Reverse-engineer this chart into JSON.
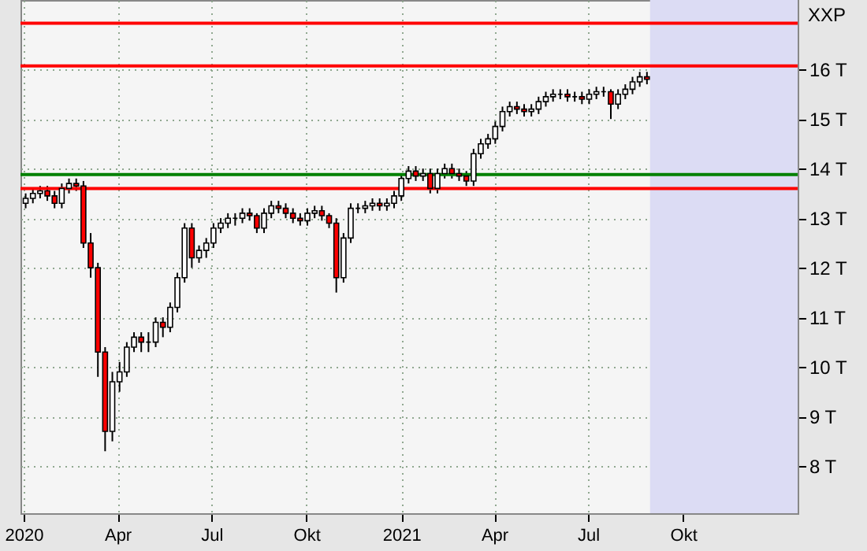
{
  "chart_data": {
    "type": "candlestick",
    "ylabel": "XXP",
    "x": [
      "2020-01-03",
      "2020-01-10",
      "2020-01-17",
      "2020-01-24",
      "2020-01-31",
      "2020-02-07",
      "2020-02-14",
      "2020-02-21",
      "2020-02-28",
      "2020-03-06",
      "2020-03-13",
      "2020-03-20",
      "2020-03-27",
      "2020-04-03",
      "2020-04-10",
      "2020-04-17",
      "2020-04-24",
      "2020-05-01",
      "2020-05-08",
      "2020-05-15",
      "2020-05-22",
      "2020-05-29",
      "2020-06-05",
      "2020-06-12",
      "2020-06-19",
      "2020-06-26",
      "2020-07-03",
      "2020-07-10",
      "2020-07-17",
      "2020-07-24",
      "2020-07-31",
      "2020-08-07",
      "2020-08-14",
      "2020-08-21",
      "2020-08-28",
      "2020-09-04",
      "2020-09-11",
      "2020-09-18",
      "2020-09-25",
      "2020-10-02",
      "2020-10-09",
      "2020-10-16",
      "2020-10-23",
      "2020-10-30",
      "2020-11-06",
      "2020-11-13",
      "2020-11-20",
      "2020-11-27",
      "2020-12-04",
      "2020-12-11",
      "2020-12-18",
      "2020-12-25",
      "2021-01-01",
      "2021-01-08",
      "2021-01-15",
      "2021-01-22",
      "2021-01-29",
      "2021-02-05",
      "2021-02-12",
      "2021-02-19",
      "2021-02-26",
      "2021-03-05",
      "2021-03-12",
      "2021-03-19",
      "2021-03-26",
      "2021-04-02",
      "2021-04-09",
      "2021-04-16",
      "2021-04-23",
      "2021-04-30",
      "2021-05-07",
      "2021-05-14",
      "2021-05-21",
      "2021-05-28",
      "2021-06-04",
      "2021-06-11",
      "2021-06-18",
      "2021-06-25",
      "2021-07-02",
      "2021-07-09",
      "2021-07-16",
      "2021-07-23",
      "2021-07-30",
      "2021-08-06",
      "2021-08-13",
      "2021-08-20",
      "2021-08-27"
    ],
    "ohlc": [
      [
        13.3,
        13.5,
        13.2,
        13.4
      ],
      [
        13.4,
        13.6,
        13.3,
        13.5
      ],
      [
        13.5,
        13.65,
        13.4,
        13.55
      ],
      [
        13.55,
        13.65,
        13.35,
        13.45
      ],
      [
        13.45,
        13.55,
        13.2,
        13.3
      ],
      [
        13.3,
        13.7,
        13.2,
        13.6
      ],
      [
        13.6,
        13.8,
        13.5,
        13.7
      ],
      [
        13.7,
        13.8,
        13.55,
        13.65
      ],
      [
        13.65,
        13.75,
        12.4,
        12.5
      ],
      [
        12.5,
        12.7,
        11.8,
        12.0
      ],
      [
        12.0,
        12.1,
        9.8,
        10.3
      ],
      [
        10.3,
        10.4,
        8.3,
        8.7
      ],
      [
        8.7,
        9.9,
        8.5,
        9.7
      ],
      [
        9.7,
        10.1,
        9.5,
        9.9
      ],
      [
        9.9,
        10.5,
        9.8,
        10.4
      ],
      [
        10.4,
        10.7,
        10.3,
        10.6
      ],
      [
        10.6,
        10.7,
        10.3,
        10.5
      ],
      [
        10.5,
        10.7,
        10.3,
        10.5
      ],
      [
        10.5,
        11.0,
        10.4,
        10.9
      ],
      [
        10.9,
        11.0,
        10.6,
        10.8
      ],
      [
        10.8,
        11.3,
        10.7,
        11.2
      ],
      [
        11.2,
        11.9,
        11.1,
        11.8
      ],
      [
        11.8,
        12.9,
        11.7,
        12.8
      ],
      [
        12.8,
        12.9,
        12.0,
        12.2
      ],
      [
        12.2,
        12.45,
        12.1,
        12.35
      ],
      [
        12.35,
        12.6,
        12.2,
        12.5
      ],
      [
        12.5,
        12.9,
        12.4,
        12.8
      ],
      [
        12.8,
        13.0,
        12.7,
        12.9
      ],
      [
        12.9,
        13.1,
        12.8,
        13.0
      ],
      [
        13.0,
        13.1,
        12.85,
        13.0
      ],
      [
        13.0,
        13.2,
        12.9,
        13.1
      ],
      [
        13.1,
        13.2,
        12.95,
        13.05
      ],
      [
        13.05,
        13.1,
        12.7,
        12.8
      ],
      [
        12.8,
        13.2,
        12.7,
        13.1
      ],
      [
        13.1,
        13.35,
        13.0,
        13.25
      ],
      [
        13.25,
        13.35,
        13.1,
        13.2
      ],
      [
        13.2,
        13.3,
        13.0,
        13.1
      ],
      [
        13.1,
        13.2,
        12.9,
        13.0
      ],
      [
        13.0,
        13.1,
        12.85,
        12.95
      ],
      [
        12.95,
        13.2,
        12.85,
        13.1
      ],
      [
        13.1,
        13.25,
        13.0,
        13.15
      ],
      [
        13.15,
        13.25,
        12.95,
        13.05
      ],
      [
        13.05,
        13.1,
        12.8,
        12.9
      ],
      [
        12.9,
        13.0,
        11.5,
        11.8
      ],
      [
        11.8,
        12.7,
        11.7,
        12.6
      ],
      [
        12.6,
        13.3,
        12.5,
        13.2
      ],
      [
        13.2,
        13.3,
        13.1,
        13.2
      ],
      [
        13.2,
        13.35,
        13.1,
        13.25
      ],
      [
        13.25,
        13.4,
        13.15,
        13.3
      ],
      [
        13.3,
        13.4,
        13.15,
        13.25
      ],
      [
        13.25,
        13.4,
        13.15,
        13.3
      ],
      [
        13.3,
        13.55,
        13.2,
        13.45
      ],
      [
        13.45,
        13.9,
        13.35,
        13.8
      ],
      [
        13.8,
        14.05,
        13.7,
        13.95
      ],
      [
        13.95,
        14.05,
        13.75,
        13.85
      ],
      [
        13.85,
        14.0,
        13.75,
        13.9
      ],
      [
        13.9,
        14.0,
        13.5,
        13.6
      ],
      [
        13.6,
        14.0,
        13.5,
        13.9
      ],
      [
        13.9,
        14.1,
        13.8,
        14.0
      ],
      [
        14.0,
        14.1,
        13.8,
        13.9
      ],
      [
        13.9,
        14.0,
        13.75,
        13.85
      ],
      [
        13.85,
        13.95,
        13.65,
        13.75
      ],
      [
        13.75,
        14.4,
        13.65,
        14.3
      ],
      [
        14.3,
        14.6,
        14.2,
        14.5
      ],
      [
        14.5,
        14.7,
        14.4,
        14.6
      ],
      [
        14.6,
        14.95,
        14.5,
        14.85
      ],
      [
        14.85,
        15.25,
        14.75,
        15.15
      ],
      [
        15.15,
        15.35,
        15.05,
        15.25
      ],
      [
        15.25,
        15.35,
        15.1,
        15.2
      ],
      [
        15.2,
        15.3,
        15.05,
        15.15
      ],
      [
        15.15,
        15.3,
        15.05,
        15.2
      ],
      [
        15.2,
        15.45,
        15.1,
        15.35
      ],
      [
        15.35,
        15.55,
        15.25,
        15.45
      ],
      [
        15.45,
        15.6,
        15.35,
        15.5
      ],
      [
        15.5,
        15.6,
        15.4,
        15.5
      ],
      [
        15.5,
        15.6,
        15.35,
        15.45
      ],
      [
        15.45,
        15.55,
        15.35,
        15.45
      ],
      [
        15.45,
        15.55,
        15.3,
        15.4
      ],
      [
        15.4,
        15.6,
        15.3,
        15.5
      ],
      [
        15.5,
        15.65,
        15.4,
        15.55
      ],
      [
        15.55,
        15.65,
        15.45,
        15.55
      ],
      [
        15.55,
        15.6,
        15.0,
        15.3
      ],
      [
        15.3,
        15.6,
        15.2,
        15.5
      ],
      [
        15.5,
        15.7,
        15.4,
        15.6
      ],
      [
        15.6,
        15.85,
        15.5,
        15.75
      ],
      [
        15.75,
        15.95,
        15.65,
        15.85
      ],
      [
        15.85,
        15.95,
        15.7,
        15.8
      ]
    ],
    "xlim": [
      "2019-12-29",
      "2022-01-20"
    ],
    "xticks": [
      {
        "value": "2020-01-01",
        "label": "2020"
      },
      {
        "value": "2020-04-01",
        "label": "Apr"
      },
      {
        "value": "2020-07-01",
        "label": "Jul"
      },
      {
        "value": "2020-10-01",
        "label": "Okt"
      },
      {
        "value": "2021-01-01",
        "label": "2021"
      },
      {
        "value": "2021-04-01",
        "label": "Apr"
      },
      {
        "value": "2021-07-01",
        "label": "Jul"
      },
      {
        "value": "2021-10-01",
        "label": "Okt"
      }
    ],
    "ylim": [
      7.05,
      17.4
    ],
    "yticks": [
      {
        "value": 8,
        "label": "8 T"
      },
      {
        "value": 9,
        "label": "9 T"
      },
      {
        "value": 10,
        "label": "10 T"
      },
      {
        "value": 11,
        "label": "11 T"
      },
      {
        "value": 12,
        "label": "12 T"
      },
      {
        "value": 13,
        "label": "13 T"
      },
      {
        "value": 14,
        "label": "14 T"
      },
      {
        "value": 15,
        "label": "15 T"
      },
      {
        "value": 16,
        "label": "16 T"
      }
    ],
    "ref_lines": [
      {
        "axis": "y",
        "value": 16.07,
        "color": "#ff0000"
      },
      {
        "axis": "y",
        "value": 16.93,
        "color": "#ff0000"
      },
      {
        "axis": "y",
        "value": 13.6,
        "color": "#ff0000"
      },
      {
        "axis": "y",
        "value": 13.88,
        "color": "#008000"
      }
    ],
    "bands": [
      {
        "axis": "x",
        "from": "2021-08-30",
        "to": "2022-01-20",
        "color": "#dcdcf4"
      }
    ],
    "grid": true
  }
}
